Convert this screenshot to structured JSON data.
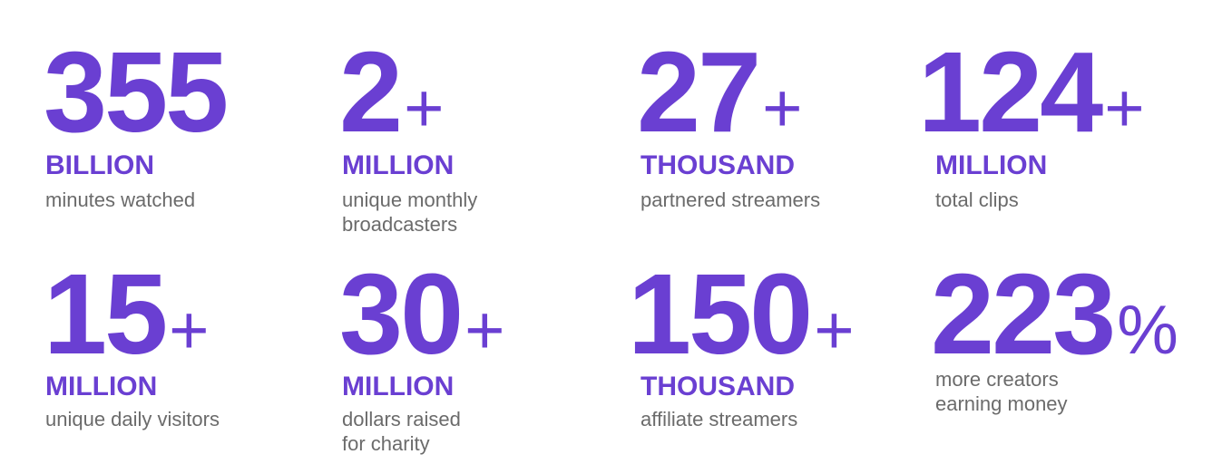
{
  "stats": [
    {
      "number": "355",
      "suffix": null,
      "unit": "BILLION",
      "description": [
        "minutes watched"
      ]
    },
    {
      "number": "2",
      "suffix": "+",
      "unit": "MILLION",
      "description": [
        "unique monthly",
        "broadcasters"
      ]
    },
    {
      "number": "27",
      "suffix": "+",
      "unit": "THOUSAND",
      "description": [
        "partnered streamers"
      ]
    },
    {
      "number": "124",
      "suffix": "+",
      "unit": "MILLION",
      "description": [
        "total clips"
      ]
    },
    {
      "number": "15",
      "suffix": "+",
      "unit": "MILLION",
      "description": [
        "unique daily visitors"
      ]
    },
    {
      "number": "30",
      "suffix": "+",
      "unit": "MILLION",
      "description": [
        "dollars raised",
        "for charity"
      ]
    },
    {
      "number": "150",
      "suffix": "+",
      "unit": "THOUSAND",
      "description": [
        "affiliate streamers"
      ]
    },
    {
      "number": "223",
      "suffix": "%",
      "unit": null,
      "description": [
        "more creators",
        "earning money"
      ]
    }
  ]
}
